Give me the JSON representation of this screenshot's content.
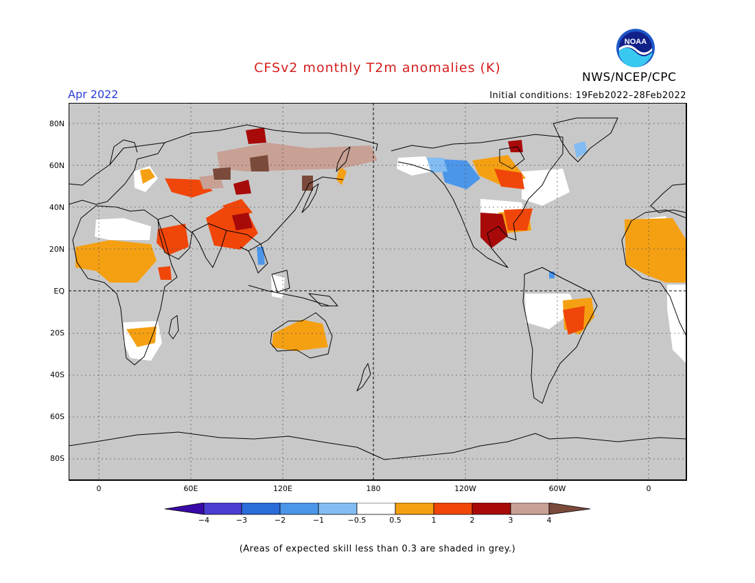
{
  "header": {
    "title": "CFSv2 monthly T2m anomalies (K)",
    "month": "Apr 2022",
    "agency": "NWS/NCEP/CPC",
    "logo_text": "NOAA",
    "initial_conditions": "Initial conditions: 19Feb2022–28Feb2022"
  },
  "map": {
    "projection": "cylindrical equidistant, centered 180",
    "background_color": "#c8c8c8",
    "lat_ticks": [
      "80N",
      "60N",
      "40N",
      "20N",
      "EQ",
      "20S",
      "40S",
      "60S",
      "80S"
    ],
    "lon_ticks": [
      "0",
      "60E",
      "120E",
      "180",
      "120W",
      "60W",
      "0"
    ],
    "regions": [
      {
        "name": "Central/E Siberia",
        "category": "3-4"
      },
      {
        "name": "Mongolia / N China",
        "category": "2-3"
      },
      {
        "name": "Tibetan Plateau / SW China",
        "category": "1-3"
      },
      {
        "name": "Kazakhstan / Caspian",
        "category": "1-3"
      },
      {
        "name": "Arabian Peninsula",
        "category": "1-2"
      },
      {
        "name": "Sahel",
        "category": "0.5-1"
      },
      {
        "name": "Southern Africa",
        "category": "0.5-1"
      },
      {
        "name": "Australia",
        "category": "0.5-1"
      },
      {
        "name": "Mexico / S Plains US",
        "category": "2-3"
      },
      {
        "name": "SE United States",
        "category": "1-2"
      },
      {
        "name": "Canada (Hudson Bay)",
        "category": "0.5-2"
      },
      {
        "name": "Western Canada / Pacific NW",
        "category": "-1 to -0.5"
      },
      {
        "name": "Greenland coast",
        "category": "-1 to -0.5"
      },
      {
        "name": "Eastern Brazil",
        "category": "0.5-2"
      },
      {
        "name": "Indochina",
        "category": "-1 to -0.5"
      }
    ]
  },
  "colorbar": {
    "ticks": [
      "−4",
      "−3",
      "−2",
      "−1",
      "−0.5",
      "0.5",
      "1",
      "2",
      "3",
      "4"
    ],
    "colors": [
      "#3a0aa8",
      "#4a3ed0",
      "#2a6cd8",
      "#4c96ea",
      "#82bcf2",
      "#ffffff",
      "#f5a012",
      "#f0460a",
      "#a80a0a",
      "#c8a094",
      "#7a4a3a"
    ]
  },
  "footnote": "(Areas of expected skill less than 0.3 are shaded in grey.)"
}
